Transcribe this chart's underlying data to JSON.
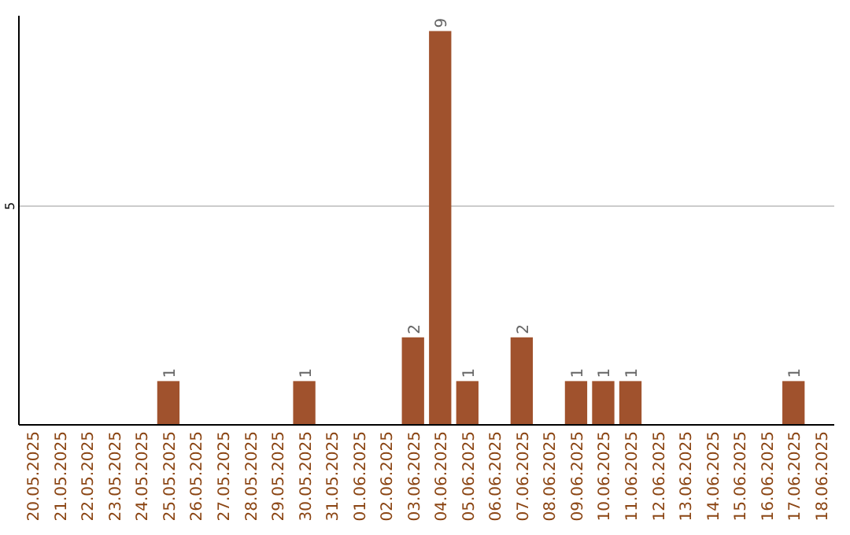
{
  "chart_data": {
    "type": "bar",
    "categories": [
      "20.05.2025",
      "21.05.2025",
      "22.05.2025",
      "23.05.2025",
      "24.05.2025",
      "25.05.2025",
      "26.05.2025",
      "27.05.2025",
      "28.05.2025",
      "29.05.2025",
      "30.05.2025",
      "31.05.2025",
      "01.06.2025",
      "02.06.2025",
      "03.06.2025",
      "04.06.2025",
      "05.06.2025",
      "06.06.2025",
      "07.06.2025",
      "08.06.2025",
      "09.06.2025",
      "10.06.2025",
      "11.06.2025",
      "12.06.2025",
      "13.06.2025",
      "14.06.2025",
      "15.06.2025",
      "16.06.2025",
      "17.06.2025",
      "18.06.2025"
    ],
    "values": [
      0,
      0,
      0,
      0,
      0,
      1,
      0,
      0,
      0,
      0,
      1,
      0,
      0,
      0,
      2,
      9,
      1,
      0,
      2,
      0,
      1,
      1,
      1,
      0,
      0,
      0,
      0,
      0,
      1,
      0
    ],
    "value_labels": [
      null,
      null,
      null,
      null,
      null,
      "1",
      null,
      null,
      null,
      null,
      "1",
      null,
      null,
      null,
      "2",
      "9",
      "1",
      null,
      "2",
      null,
      "1",
      "1",
      "1",
      null,
      null,
      null,
      null,
      null,
      "1",
      null
    ],
    "color": "#a0522d",
    "ylim": [
      0,
      9.35
    ],
    "yticks": [
      5
    ],
    "grid": "y"
  }
}
